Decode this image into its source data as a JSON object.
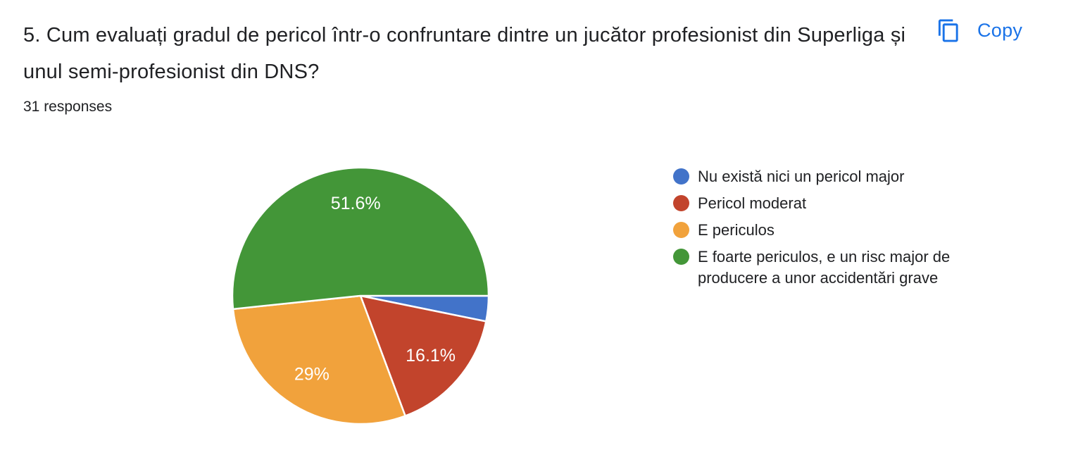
{
  "header": {
    "question_title": "5. Cum evaluați gradul de pericol într-o confruntare dintre un jucător profesionist din Superliga și unul semi-profesionist din DNS?",
    "responses_label": "31 responses",
    "copy_button": {
      "label": "Copy",
      "color": "#1a73e8"
    }
  },
  "chart_data": {
    "type": "pie",
    "title": "5. Cum evaluați gradul de pericol într-o confruntare dintre un jucător profesionist din Superliga și unul semi-profesionist din DNS?",
    "subtitle": "31 responses",
    "legend_position": "right",
    "start_angle_deg": 0,
    "direction": "clockwise",
    "slice_label_color": "#ffffff",
    "slice_border_color": "#ffffff",
    "slices": [
      {
        "label": "Nu există nici un pericol major",
        "value_pct": 3.2,
        "display_label": "",
        "color": "#4273c9"
      },
      {
        "label": "Pericol moderat",
        "value_pct": 16.1,
        "display_label": "16.1%",
        "color": "#c2442c"
      },
      {
        "label": "E periculos",
        "value_pct": 29,
        "display_label": "29%",
        "color": "#f1a23c"
      },
      {
        "label": "E foarte periculos, e un risc major de producere a unor accidentări grave",
        "value_pct": 51.6,
        "display_label": "51.6%",
        "color": "#439638"
      }
    ]
  }
}
